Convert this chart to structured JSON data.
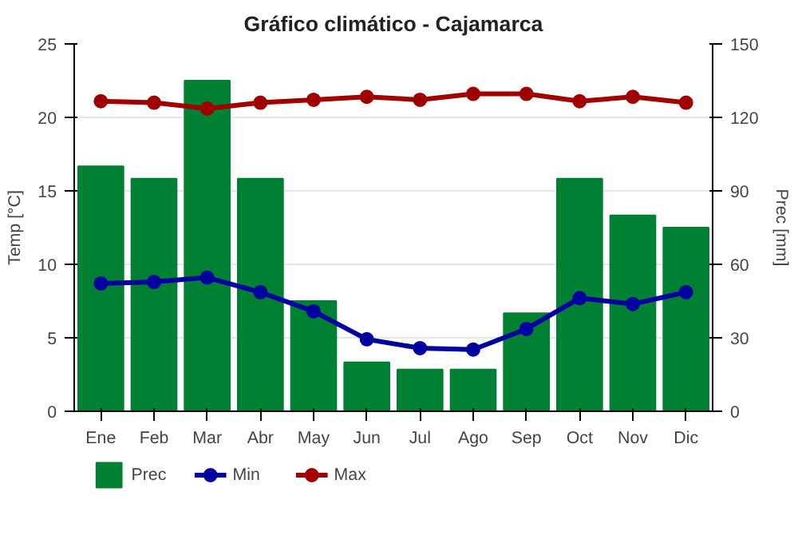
{
  "chart_data": {
    "type": "bar",
    "title": "Gráfico climático - Cajamarca",
    "ylabel": "Temp [°C]",
    "y2label": "Prec [mm]",
    "categories": [
      "Ene",
      "Feb",
      "Mar",
      "Abr",
      "May",
      "Jun",
      "Jul",
      "Ago",
      "Sep",
      "Oct",
      "Nov",
      "Dic"
    ],
    "series": [
      {
        "name": "Prec",
        "axis": "y2",
        "color": "#008033",
        "values": [
          100,
          95,
          135,
          95,
          45,
          20,
          17,
          17,
          40,
          95,
          80,
          75
        ]
      },
      {
        "name": "Min",
        "type": "line",
        "color": "#0000a0",
        "values": [
          8.7,
          8.8,
          9.1,
          8.1,
          6.8,
          4.9,
          4.3,
          4.2,
          5.6,
          7.7,
          7.3,
          8.1
        ]
      },
      {
        "name": "Max",
        "type": "line",
        "color": "#a00000",
        "values": [
          21.1,
          21.0,
          20.6,
          21.0,
          21.2,
          21.4,
          21.2,
          21.6,
          21.6,
          21.1,
          21.4,
          21.0
        ]
      }
    ],
    "ylim": [
      0,
      25
    ],
    "yticks": [
      0,
      5,
      10,
      15,
      20,
      25
    ],
    "y2lim": [
      0,
      150
    ],
    "y2ticks": [
      0,
      30,
      60,
      90,
      120,
      150
    ],
    "grid": "y",
    "legend": "bottom",
    "marker": "circle"
  }
}
